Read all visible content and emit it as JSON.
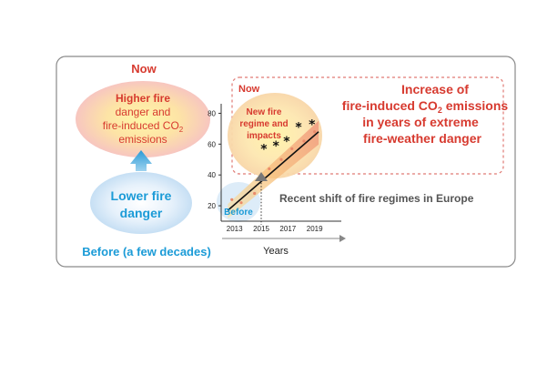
{
  "left": {
    "now_label": "Now",
    "higher_line1": "Higher fire",
    "higher_line2": "danger and",
    "higher_line3_prefix": "fire-induced CO",
    "higher_line3_sub": "2",
    "higher_line4": "emissions",
    "lower_line1": "Lower fire",
    "lower_line2": "danger",
    "before_label": "Before (a few decades)"
  },
  "chart": {
    "now_label": "Now",
    "bubble_line1": "New fire",
    "bubble_line2": "regime and",
    "bubble_line3": "impacts",
    "before_label": "Before",
    "x_axis_title": "Years",
    "caption": "Recent shift of fire regimes in Europe"
  },
  "right": {
    "line1": "Increase of",
    "line2_prefix": "fire-induced CO",
    "line2_sub": "2",
    "line2_suffix": " emissions",
    "line3": "in years of extreme",
    "line4": "fire-weather danger"
  },
  "colors": {
    "now_red": "#d73a2f",
    "before_blue": "#1b9bd7",
    "frame_gray": "#8a8a8a",
    "dashed_red": "#e07a74",
    "trend_line": "#111111",
    "band_orange": "#f4a36b"
  },
  "chart_data": {
    "type": "scatter",
    "xlabel": "Years",
    "ylabel": "",
    "x_ticks": [
      "2013",
      "2015",
      "2017",
      "2019"
    ],
    "y_ticks": [
      "20",
      "40",
      "60",
      "80"
    ],
    "xlim": [
      2012,
      2021
    ],
    "ylim": [
      10,
      85
    ],
    "series": [
      {
        "marker": "star",
        "points": [
          [
            2015.2,
            57
          ],
          [
            2016.1,
            59
          ],
          [
            2016.9,
            62
          ],
          [
            2017.8,
            71
          ],
          [
            2018.8,
            73
          ]
        ]
      },
      {
        "marker": "dot",
        "points": [
          [
            2012.8,
            24
          ],
          [
            2013.5,
            22
          ],
          [
            2014.5,
            28
          ],
          [
            2015.6,
            44
          ],
          [
            2016.5,
            50
          ],
          [
            2017.3,
            57
          ],
          [
            2018.2,
            62
          ],
          [
            2019.0,
            68
          ]
        ]
      }
    ],
    "trend_line": [
      [
        2012.5,
        17
      ],
      [
        2019.3,
        68
      ]
    ],
    "split_year": 2015
  }
}
